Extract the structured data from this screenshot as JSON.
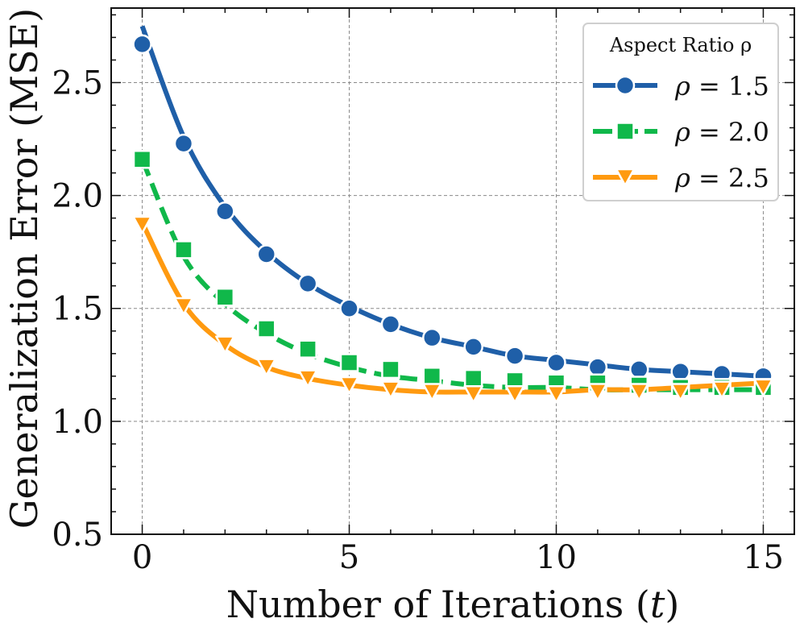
{
  "chart_data": {
    "type": "line",
    "title": "",
    "xlabel": "Number of Iterations (",
    "xlabel_var": "t",
    "xlabel_close": ")",
    "ylabel": "Generalization Error (MSE)",
    "xlim": [
      -0.75,
      15.75
    ],
    "ylim": [
      0.5,
      2.83
    ],
    "xticks": [
      0,
      5,
      10,
      15
    ],
    "yticks": [
      0.5,
      1.0,
      1.5,
      2.0,
      2.5
    ],
    "ytick_labels": [
      "0.5",
      "1.0",
      "1.5",
      "2.0",
      "2.5"
    ],
    "xtick_labels": [
      "0",
      "5",
      "10",
      "15"
    ],
    "grid": true,
    "legend": {
      "title": "Aspect Ratio ρ",
      "placement": "top-right"
    },
    "x": [
      0,
      1,
      2,
      3,
      4,
      5,
      6,
      7,
      8,
      9,
      10,
      11,
      12,
      13,
      14,
      15
    ],
    "series": [
      {
        "name": "ρ = 1.5",
        "label_var": "ρ",
        "label_rest": " = 1.5",
        "color": "#1f5fa8",
        "marker": "circle",
        "dash": "",
        "markers": [
          2.67,
          2.23,
          1.93,
          1.74,
          1.61,
          1.5,
          1.43,
          1.37,
          1.33,
          1.29,
          1.26,
          1.24,
          1.23,
          1.22,
          1.21,
          1.2
        ],
        "curve": [
          2.75,
          2.26,
          1.95,
          1.75,
          1.61,
          1.51,
          1.43,
          1.37,
          1.33,
          1.29,
          1.27,
          1.25,
          1.23,
          1.22,
          1.21,
          1.2
        ]
      },
      {
        "name": "ρ = 2.0",
        "label_var": "ρ",
        "label_rest": " = 2.0",
        "color": "#10b84a",
        "marker": "square",
        "dash": "22 10",
        "markers": [
          2.16,
          1.76,
          1.55,
          1.41,
          1.32,
          1.26,
          1.23,
          1.2,
          1.19,
          1.18,
          1.17,
          1.17,
          1.16,
          1.15,
          1.15,
          1.15
        ],
        "curve": [
          2.16,
          1.73,
          1.52,
          1.39,
          1.3,
          1.24,
          1.2,
          1.18,
          1.16,
          1.15,
          1.15,
          1.14,
          1.14,
          1.14,
          1.14,
          1.14
        ]
      },
      {
        "name": "ρ = 2.5",
        "label_var": "ρ",
        "label_rest": " = 2.5",
        "color": "#ff9a10",
        "marker": "triangle-down",
        "dash": "",
        "markers": [
          1.87,
          1.51,
          1.34,
          1.24,
          1.19,
          1.16,
          1.14,
          1.13,
          1.12,
          1.12,
          1.12,
          1.13,
          1.13,
          1.13,
          1.14,
          1.15
        ],
        "curve": [
          1.88,
          1.52,
          1.34,
          1.24,
          1.19,
          1.16,
          1.14,
          1.13,
          1.13,
          1.13,
          1.13,
          1.14,
          1.14,
          1.15,
          1.16,
          1.17
        ]
      }
    ]
  }
}
